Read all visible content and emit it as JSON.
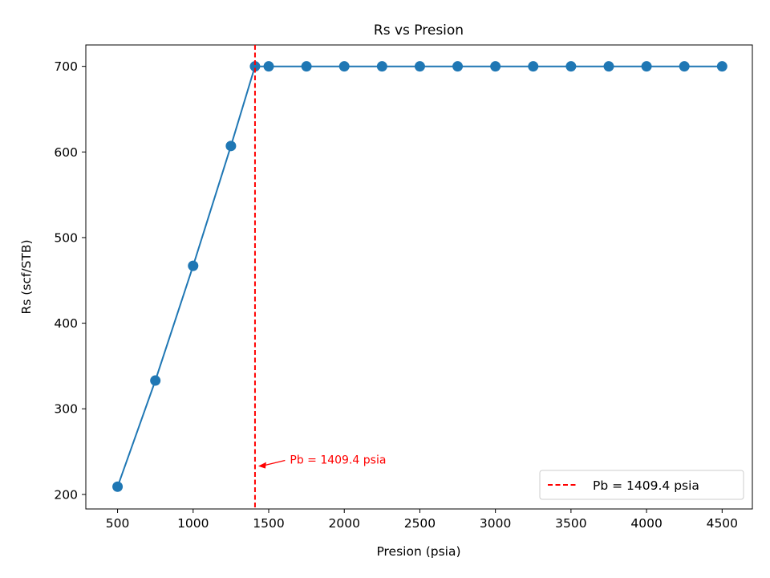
{
  "chart_data": {
    "type": "line",
    "title": "Rs vs Presion",
    "xlabel": "Presion (psia)",
    "ylabel": "Rs (scf/STB)",
    "xlim": [
      290,
      4700
    ],
    "ylim": [
      183,
      725
    ],
    "xticks": [
      500,
      1000,
      1500,
      2000,
      2500,
      3000,
      3500,
      4000,
      4500
    ],
    "yticks": [
      200,
      300,
      400,
      500,
      600,
      700
    ],
    "grid": false,
    "legend_position": "lower-right",
    "series": [
      {
        "color": "#1f77b4",
        "marker": "circle",
        "x": [
          500,
          750,
          1000,
          1250,
          1409.4,
          1500,
          1750,
          2000,
          2250,
          2500,
          2750,
          3000,
          3250,
          3500,
          3750,
          4000,
          4250,
          4500
        ],
        "y": [
          209,
          333,
          467,
          607,
          700,
          700,
          700,
          700,
          700,
          700,
          700,
          700,
          700,
          700,
          700,
          700,
          700,
          700
        ]
      }
    ],
    "reference_line": {
      "x": 1409.4,
      "color": "#ff0000",
      "style": "dashed",
      "legend_label": "Pb = 1409.4 psia"
    },
    "annotation": {
      "text": "Pb = 1409.4 psia",
      "color": "#ff0000",
      "point": [
        1409.4,
        233
      ],
      "text_at": [
        1640,
        236
      ]
    }
  }
}
